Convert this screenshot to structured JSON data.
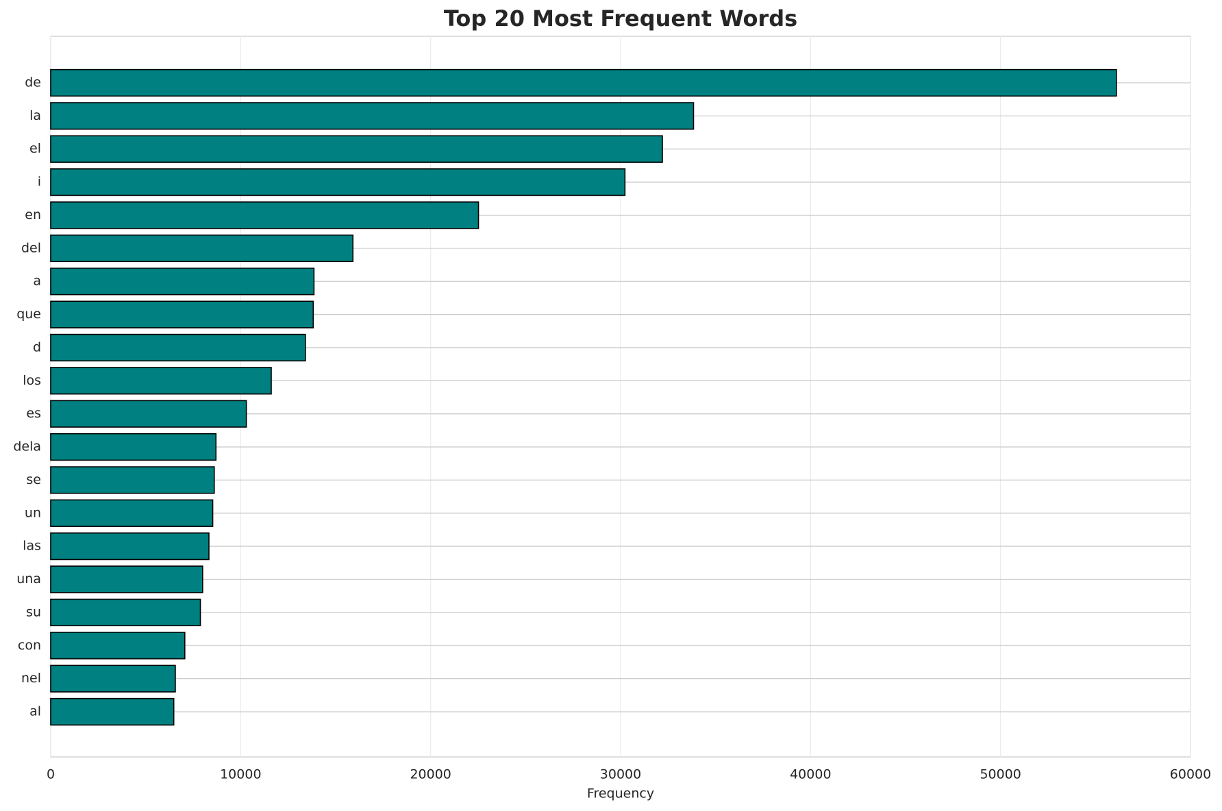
{
  "chart_data": {
    "type": "barh",
    "title": "Top 20 Most Frequent Words",
    "xlabel": "Frequency",
    "categories": [
      "de",
      "la",
      "el",
      "i",
      "en",
      "del",
      "a",
      "que",
      "d",
      "los",
      "es",
      "dela",
      "se",
      "un",
      "las",
      "una",
      "su",
      "con",
      "nel",
      "al"
    ],
    "values": [
      56100,
      33840,
      32200,
      30230,
      22520,
      15910,
      13860,
      13820,
      13410,
      11610,
      10300,
      8700,
      8610,
      8530,
      8330,
      8000,
      7880,
      7060,
      6560,
      6480
    ],
    "color": "#008080",
    "xlim": [
      0,
      60000
    ],
    "xticks": [
      0,
      10000,
      20000,
      30000,
      40000,
      50000,
      60000
    ],
    "grid": true
  }
}
